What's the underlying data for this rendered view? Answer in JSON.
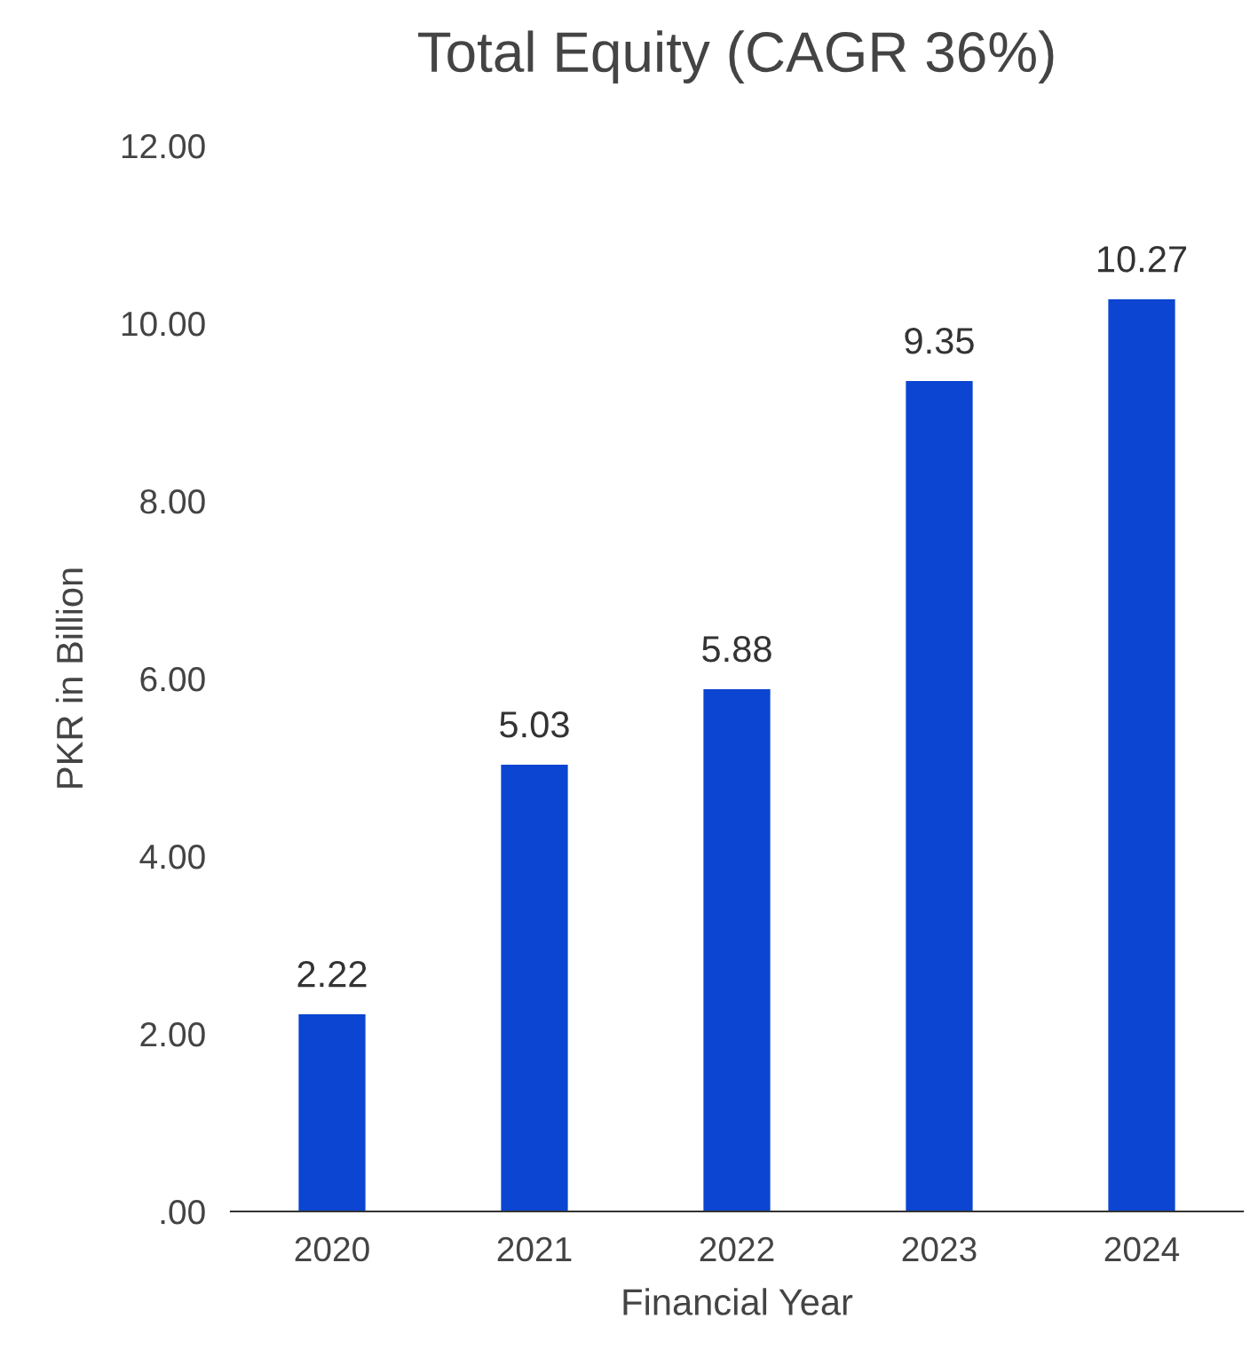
{
  "chart_data": {
    "type": "bar",
    "title": "Total Equity (CAGR 36%)",
    "xlabel": "Financial Year",
    "ylabel": "PKR in Billion",
    "categories": [
      "2020",
      "2021",
      "2022",
      "2023",
      "2024"
    ],
    "values": [
      2.22,
      5.03,
      5.88,
      9.35,
      10.27
    ],
    "color": "#0b45d1",
    "ylim": [
      0,
      12
    ],
    "yticks": [
      {
        "value": 0,
        "label": ".00"
      },
      {
        "value": 2,
        "label": "2.00"
      },
      {
        "value": 4,
        "label": "4.00"
      },
      {
        "value": 6,
        "label": "6.00"
      },
      {
        "value": 8,
        "label": "8.00"
      },
      {
        "value": 10,
        "label": "10.00"
      },
      {
        "value": 12,
        "label": "12.00"
      }
    ],
    "data_labels": true,
    "grid": false,
    "legend": false
  }
}
